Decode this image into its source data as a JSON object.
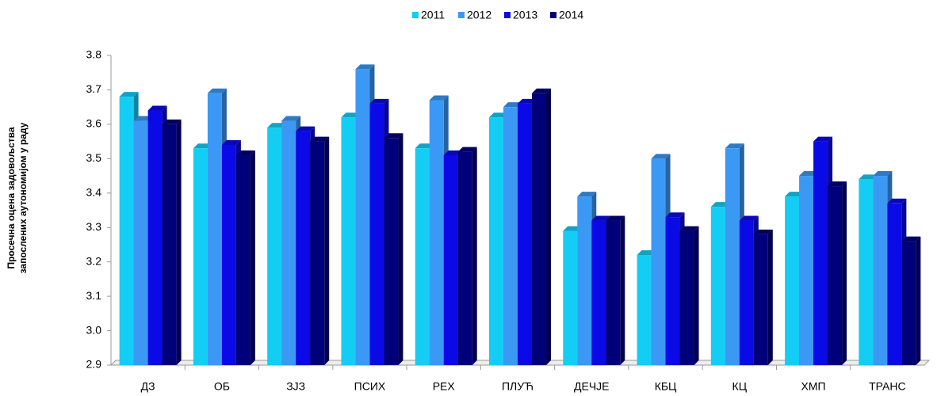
{
  "chart_data": {
    "type": "bar3d",
    "ylabel": "Просечна оцена задовољства запослених аутономијом у раду",
    "categories": [
      "ДЗ",
      "ОБ",
      "ЗЈЗ",
      "ПСИХ",
      "РЕХ",
      "ПЛУЋ",
      "ДЕЧЈЕ",
      "КБЦ",
      "КЦ",
      "ХМП",
      "ТРАНС"
    ],
    "series": [
      {
        "name": "2011",
        "color": "#14cdf5",
        "values": [
          3.68,
          3.53,
          3.59,
          3.62,
          3.53,
          3.62,
          3.29,
          3.22,
          3.36,
          3.39,
          3.44
        ]
      },
      {
        "name": "2012",
        "color": "#3b99f5",
        "values": [
          3.61,
          3.69,
          3.61,
          3.76,
          3.67,
          3.65,
          3.39,
          3.5,
          3.53,
          3.45,
          3.45
        ]
      },
      {
        "name": "2013",
        "color": "#0a0ae6",
        "values": [
          3.64,
          3.54,
          3.58,
          3.66,
          3.51,
          3.66,
          3.32,
          3.33,
          3.32,
          3.55,
          3.37
        ]
      },
      {
        "name": "2014",
        "color": "#00007a",
        "values": [
          3.6,
          3.51,
          3.55,
          3.56,
          3.52,
          3.69,
          3.32,
          3.29,
          3.28,
          3.42,
          3.26
        ]
      }
    ],
    "ylim": [
      2.9,
      3.8
    ],
    "yticks": [
      2.9,
      {
        "value": 3,
        "label": "3.0"
      },
      3.1,
      3.2,
      3.3,
      3.4,
      3.5,
      3.6,
      3.7,
      3.8
    ],
    "legend": "top"
  }
}
